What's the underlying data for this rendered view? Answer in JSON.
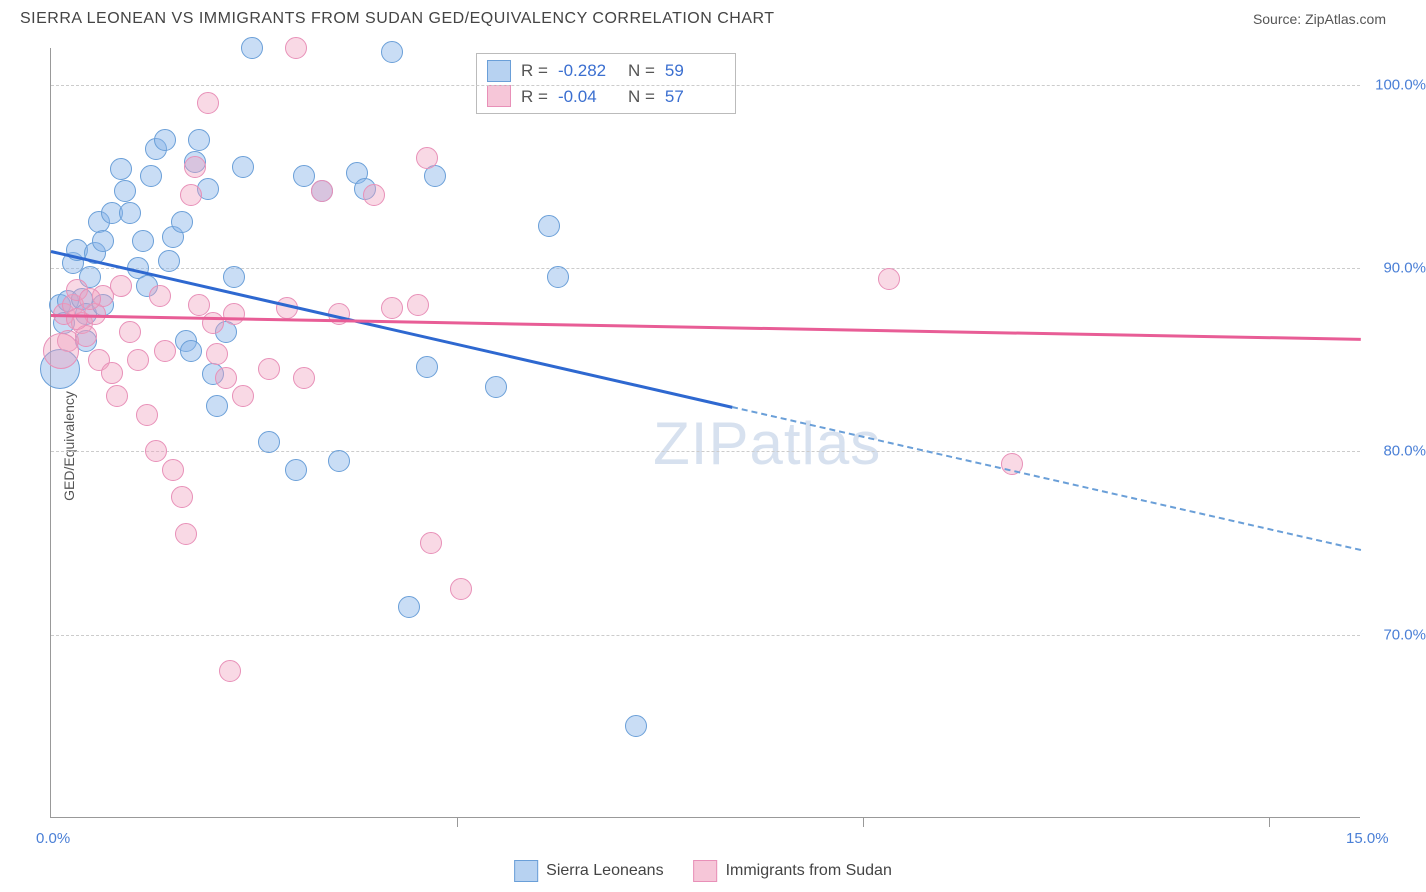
{
  "header": {
    "title": "SIERRA LEONEAN VS IMMIGRANTS FROM SUDAN GED/EQUIVALENCY CORRELATION CHART",
    "source_label": "Source:",
    "source_name": "ZipAtlas.com"
  },
  "chart": {
    "type": "scatter",
    "y_axis_label": "GED/Equivalency",
    "xlim": [
      0,
      15
    ],
    "ylim": [
      60,
      102
    ],
    "x_ticks": [
      {
        "pos": 0.0,
        "label": "0.0%"
      },
      {
        "pos": 15.0,
        "label": "15.0%"
      }
    ],
    "x_minor_ticks": [
      0.31,
      0.62,
      0.93
    ],
    "y_ticks": [
      {
        "pos": 70,
        "label": "70.0%"
      },
      {
        "pos": 80,
        "label": "80.0%"
      },
      {
        "pos": 90,
        "label": "90.0%"
      },
      {
        "pos": 100,
        "label": "100.0%"
      }
    ],
    "grid_color": "#cccccc",
    "background_color": "#ffffff",
    "axis_color": "#999999",
    "tick_label_color": "#4a7fd6",
    "marker_radius": 11,
    "series": [
      {
        "name": "Sierra Leoneans",
        "fill_color": "rgba(135,180,232,0.45)",
        "stroke_color": "#6a9fd8",
        "trend_color": "#2e68d0",
        "R": -0.282,
        "N": 59,
        "trend": {
          "x1": 0,
          "y1": 91.0,
          "x2_solid": 7.8,
          "y2_solid": 82.5,
          "x2": 15,
          "y2": 74.7
        },
        "points": [
          {
            "x": 0.1,
            "y": 88.0
          },
          {
            "x": 0.15,
            "y": 87.0
          },
          {
            "x": 0.2,
            "y": 88.2
          },
          {
            "x": 0.25,
            "y": 90.3
          },
          {
            "x": 0.3,
            "y": 91.0
          },
          {
            "x": 0.35,
            "y": 88.3
          },
          {
            "x": 0.4,
            "y": 87.5
          },
          {
            "x": 0.45,
            "y": 89.5
          },
          {
            "x": 0.5,
            "y": 90.8
          },
          {
            "x": 0.55,
            "y": 92.5
          },
          {
            "x": 0.6,
            "y": 91.5
          },
          {
            "x": 0.7,
            "y": 93.0
          },
          {
            "x": 0.8,
            "y": 95.4
          },
          {
            "x": 0.85,
            "y": 94.2
          },
          {
            "x": 0.9,
            "y": 93.0
          },
          {
            "x": 1.0,
            "y": 90.0
          },
          {
            "x": 1.05,
            "y": 91.5
          },
          {
            "x": 1.1,
            "y": 89.0
          },
          {
            "x": 1.15,
            "y": 95.0
          },
          {
            "x": 1.2,
            "y": 96.5
          },
          {
            "x": 1.3,
            "y": 97.0
          },
          {
            "x": 1.35,
            "y": 90.4
          },
          {
            "x": 1.4,
            "y": 91.7
          },
          {
            "x": 1.5,
            "y": 92.5
          },
          {
            "x": 1.55,
            "y": 86.0
          },
          {
            "x": 1.6,
            "y": 85.5
          },
          {
            "x": 1.65,
            "y": 95.8
          },
          {
            "x": 1.7,
            "y": 97.0
          },
          {
            "x": 1.8,
            "y": 94.3
          },
          {
            "x": 1.85,
            "y": 84.2
          },
          {
            "x": 1.9,
            "y": 82.5
          },
          {
            "x": 2.0,
            "y": 86.5
          },
          {
            "x": 2.1,
            "y": 89.5
          },
          {
            "x": 2.2,
            "y": 95.5
          },
          {
            "x": 2.3,
            "y": 102.0
          },
          {
            "x": 2.5,
            "y": 80.5
          },
          {
            "x": 2.8,
            "y": 79.0
          },
          {
            "x": 2.9,
            "y": 95.0
          },
          {
            "x": 3.1,
            "y": 94.2
          },
          {
            "x": 3.3,
            "y": 79.5
          },
          {
            "x": 3.5,
            "y": 95.2
          },
          {
            "x": 3.6,
            "y": 94.3
          },
          {
            "x": 3.9,
            "y": 101.8
          },
          {
            "x": 4.1,
            "y": 71.5
          },
          {
            "x": 4.3,
            "y": 84.6
          },
          {
            "x": 4.4,
            "y": 95.0
          },
          {
            "x": 5.1,
            "y": 83.5
          },
          {
            "x": 5.7,
            "y": 92.3
          },
          {
            "x": 5.8,
            "y": 89.5
          },
          {
            "x": 6.7,
            "y": 65.0
          },
          {
            "x": 0.1,
            "y": 84.5,
            "r": 20
          },
          {
            "x": 0.4,
            "y": 86.0
          },
          {
            "x": 0.6,
            "y": 88.0
          }
        ]
      },
      {
        "name": "Immigrants from Sudan",
        "fill_color": "rgba(240,160,190,0.40)",
        "stroke_color": "#e890b8",
        "trend_color": "#e85d96",
        "R": -0.04,
        "N": 57,
        "trend": {
          "x1": 0,
          "y1": 87.5,
          "x2": 15,
          "y2": 86.2
        },
        "points": [
          {
            "x": 0.15,
            "y": 87.5
          },
          {
            "x": 0.2,
            "y": 86.0
          },
          {
            "x": 0.25,
            "y": 88.0
          },
          {
            "x": 0.3,
            "y": 88.8
          },
          {
            "x": 0.35,
            "y": 87.0
          },
          {
            "x": 0.4,
            "y": 86.3
          },
          {
            "x": 0.5,
            "y": 87.5
          },
          {
            "x": 0.55,
            "y": 85.0
          },
          {
            "x": 0.6,
            "y": 88.5
          },
          {
            "x": 0.7,
            "y": 84.3
          },
          {
            "x": 0.75,
            "y": 83.0
          },
          {
            "x": 0.8,
            "y": 89.0
          },
          {
            "x": 0.9,
            "y": 86.5
          },
          {
            "x": 1.0,
            "y": 85.0
          },
          {
            "x": 1.1,
            "y": 82.0
          },
          {
            "x": 1.2,
            "y": 80.0
          },
          {
            "x": 1.25,
            "y": 88.5
          },
          {
            "x": 1.3,
            "y": 85.5
          },
          {
            "x": 1.4,
            "y": 79.0
          },
          {
            "x": 1.5,
            "y": 77.5
          },
          {
            "x": 1.55,
            "y": 75.5
          },
          {
            "x": 1.6,
            "y": 94.0
          },
          {
            "x": 1.65,
            "y": 95.5
          },
          {
            "x": 1.7,
            "y": 88.0
          },
          {
            "x": 1.8,
            "y": 99.0
          },
          {
            "x": 1.85,
            "y": 87.0
          },
          {
            "x": 1.9,
            "y": 85.3
          },
          {
            "x": 2.0,
            "y": 84.0
          },
          {
            "x": 2.05,
            "y": 68.0
          },
          {
            "x": 2.1,
            "y": 87.5
          },
          {
            "x": 2.2,
            "y": 83.0
          },
          {
            "x": 2.5,
            "y": 84.5
          },
          {
            "x": 2.7,
            "y": 87.8
          },
          {
            "x": 2.8,
            "y": 102.0
          },
          {
            "x": 2.9,
            "y": 84.0
          },
          {
            "x": 3.1,
            "y": 94.2
          },
          {
            "x": 3.3,
            "y": 87.5
          },
          {
            "x": 3.7,
            "y": 94.0
          },
          {
            "x": 3.9,
            "y": 87.8
          },
          {
            "x": 4.2,
            "y": 88.0
          },
          {
            "x": 4.3,
            "y": 96.0
          },
          {
            "x": 4.35,
            "y": 75.0
          },
          {
            "x": 4.7,
            "y": 72.5
          },
          {
            "x": 0.12,
            "y": 85.5,
            "r": 18
          },
          {
            "x": 9.6,
            "y": 89.4
          },
          {
            "x": 11.0,
            "y": 79.3
          },
          {
            "x": 0.3,
            "y": 87.2
          },
          {
            "x": 0.45,
            "y": 88.3
          }
        ]
      }
    ],
    "stats_box": {
      "r_label": "R =",
      "n_label": "N ="
    },
    "watermark": "ZIPatlas",
    "bottom_legend": {
      "item1": "Sierra Leoneans",
      "item2": "Immigrants from Sudan"
    }
  }
}
